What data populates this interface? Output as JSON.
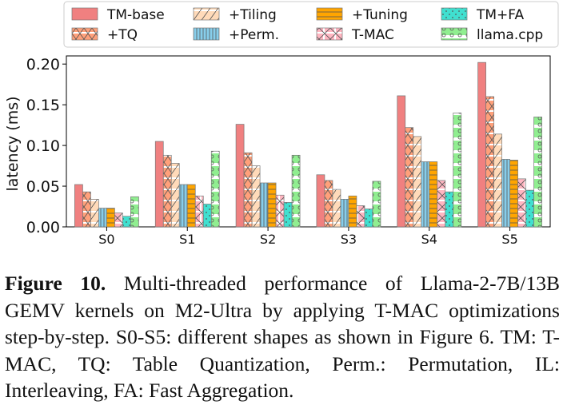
{
  "chart_data": {
    "type": "bar",
    "categories": [
      "S0",
      "S1",
      "S2",
      "S3",
      "S4",
      "S5"
    ],
    "ylabel": "latency (ms)",
    "ylim": [
      0,
      0.21
    ],
    "yticks": [
      "0.00",
      "0.05",
      "0.10",
      "0.15",
      "0.20"
    ],
    "ytick_values": [
      0,
      0.05,
      0.1,
      0.15,
      0.2
    ],
    "legend_position": "top",
    "series": [
      {
        "name": "TM-base",
        "color": "#f08080",
        "pattern": "none",
        "values": [
          0.052,
          0.105,
          0.126,
          0.064,
          0.161,
          0.202
        ]
      },
      {
        "name": "+TQ",
        "color": "#ffa07a",
        "pattern": "xdiag",
        "values": [
          0.043,
          0.088,
          0.091,
          0.057,
          0.122,
          0.16
        ]
      },
      {
        "name": "+Tiling",
        "color": "#ffdab9",
        "pattern": "diag",
        "values": [
          0.034,
          0.078,
          0.075,
          0.046,
          0.111,
          0.114
        ]
      },
      {
        "name": "+Perm.",
        "color": "#87ceeb",
        "pattern": "vert",
        "values": [
          0.023,
          0.052,
          0.054,
          0.034,
          0.08,
          0.083
        ]
      },
      {
        "name": "+Tuning",
        "color": "#ffa500",
        "pattern": "horiz",
        "values": [
          0.023,
          0.052,
          0.054,
          0.038,
          0.08,
          0.082
        ]
      },
      {
        "name": "T-MAC",
        "color": "#ffb6c1",
        "pattern": "cross",
        "values": [
          0.017,
          0.038,
          0.039,
          0.026,
          0.057,
          0.059
        ]
      },
      {
        "name": "TM+FA",
        "color": "#40e0d0",
        "pattern": "dots",
        "values": [
          0.013,
          0.028,
          0.03,
          0.022,
          0.043,
          0.045
        ]
      },
      {
        "name": "llama.cpp",
        "color": "#90ee90",
        "pattern": "circles",
        "values": [
          0.037,
          0.093,
          0.088,
          0.056,
          0.14,
          0.135
        ]
      }
    ]
  },
  "caption": {
    "label": "Figure 10.",
    "text": "Multi-threaded performance of Llama-2-7B/13B GEMV kernels on M2-Ultra by applying T-MAC optimizations step-by-step. S0-S5: different shapes as shown in Figure 6. TM: T-MAC, TQ: Table Quantization, Perm.: Permutation, IL: Interleaving, FA: Fast Aggregation."
  }
}
